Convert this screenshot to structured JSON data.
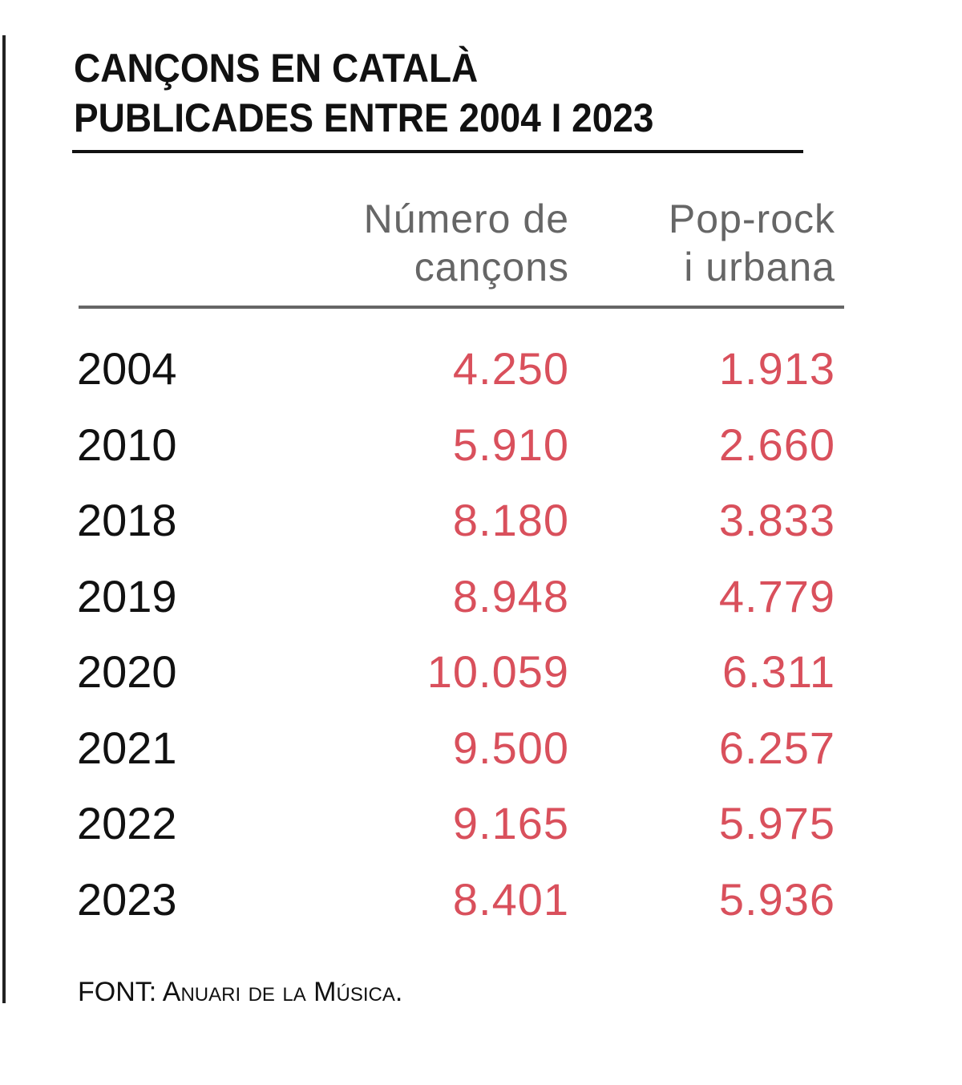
{
  "chart_data": {
    "type": "table",
    "title": [
      "CANÇONS EN CATALÀ",
      "PUBLICADES ENTRE 2004 I 2023"
    ],
    "columns": [
      {
        "label": [
          "Número de",
          "cançons"
        ]
      },
      {
        "label": [
          "Pop-rock",
          "i urbana"
        ]
      }
    ],
    "rows": [
      {
        "year": "2004",
        "total": "4.250",
        "poprock": "1.913"
      },
      {
        "year": "2010",
        "total": "5.910",
        "poprock": "2.660"
      },
      {
        "year": "2018",
        "total": "8.180",
        "poprock": "3.833"
      },
      {
        "year": "2019",
        "total": "8.948",
        "poprock": "4.779"
      },
      {
        "year": "2020",
        "total": "10.059",
        "poprock": "6.311"
      },
      {
        "year": "2021",
        "total": "9.500",
        "poprock": "6.257"
      },
      {
        "year": "2022",
        "total": "9.165",
        "poprock": "5.975"
      },
      {
        "year": "2023",
        "total": "8.401",
        "poprock": "5.936"
      }
    ],
    "source": "FONT: Anuari de la Música."
  },
  "colors": {
    "value": "#d9505c",
    "header": "#666666",
    "text": "#111111"
  }
}
